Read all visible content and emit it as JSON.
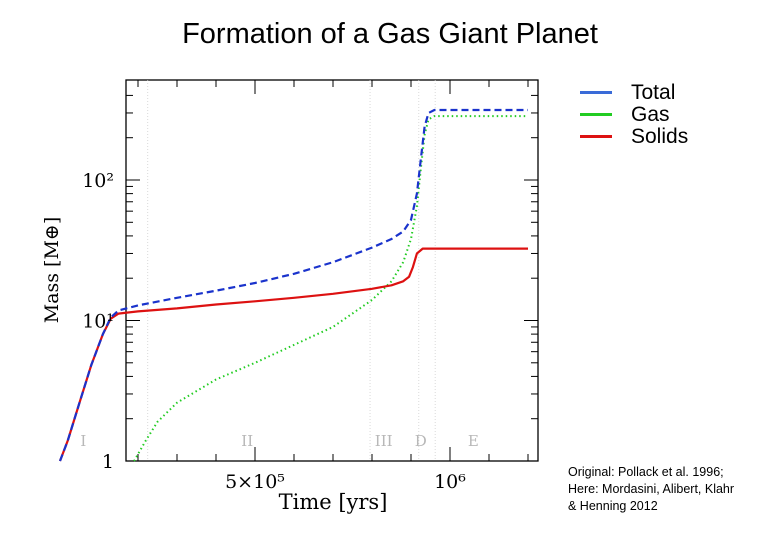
{
  "title": "Formation of a Gas Giant Planet",
  "credits": [
    "Original: Pollack et al. 1996;",
    "Here: Mordasini, Alibert, Klahr",
    "& Henning 2012"
  ],
  "colors": {
    "total": "#1a33cc",
    "gas": "#22cc22",
    "solids": "#dd1111",
    "legend_total": "#3a6bd8"
  },
  "chart_data": {
    "type": "line",
    "title": "Formation of a Gas Giant Planet",
    "xlabel": "Time [yrs]",
    "ylabel": "Mass [M⊕]",
    "x_scale": "linear",
    "y_scale": "log",
    "xlim": [
      0,
      1200000
    ],
    "ylim": [
      1,
      400
    ],
    "x_tick_labels": [
      {
        "value": 500000,
        "label": "5×10⁵"
      },
      {
        "value": 1000000,
        "label": "10⁶"
      }
    ],
    "y_tick_labels": [
      {
        "value": 1,
        "label": "1"
      },
      {
        "value": 10,
        "label": "10¹"
      },
      {
        "value": 100,
        "label": "10²"
      }
    ],
    "grid": false,
    "legend_position": "right",
    "phases": [
      {
        "label": "I",
        "x": 60000
      },
      {
        "label": "II",
        "x": 480000
      },
      {
        "label": "III",
        "x": 830000
      },
      {
        "label": "D",
        "x": 925000
      },
      {
        "label": "E",
        "x": 1060000
      }
    ],
    "series": [
      {
        "name": "Total",
        "style": "dashed",
        "points": [
          [
            0,
            1.0
          ],
          [
            20000,
            1.4
          ],
          [
            50000,
            2.6
          ],
          [
            80000,
            4.8
          ],
          [
            110000,
            8.0
          ],
          [
            130000,
            10.5
          ],
          [
            150000,
            11.8
          ],
          [
            170000,
            12.2
          ],
          [
            200000,
            12.8
          ],
          [
            300000,
            14.5
          ],
          [
            400000,
            16.3
          ],
          [
            500000,
            18.5
          ],
          [
            600000,
            21.5
          ],
          [
            700000,
            26.0
          ],
          [
            800000,
            33.0
          ],
          [
            850000,
            38.0
          ],
          [
            880000,
            43.0
          ],
          [
            900000,
            52.0
          ],
          [
            915000,
            80.0
          ],
          [
            925000,
            140.0
          ],
          [
            935000,
            240.0
          ],
          [
            945000,
            300.0
          ],
          [
            960000,
            315.0
          ],
          [
            1000000,
            315.0
          ],
          [
            1200000,
            315.0
          ]
        ]
      },
      {
        "name": "Gas",
        "style": "dotted",
        "points": [
          [
            190000,
            1.0
          ],
          [
            220000,
            1.4
          ],
          [
            250000,
            1.9
          ],
          [
            300000,
            2.6
          ],
          [
            400000,
            3.8
          ],
          [
            500000,
            5.0
          ],
          [
            600000,
            6.7
          ],
          [
            700000,
            9.0
          ],
          [
            800000,
            14.0
          ],
          [
            850000,
            19.0
          ],
          [
            880000,
            26.0
          ],
          [
            900000,
            38.0
          ],
          [
            915000,
            65.0
          ],
          [
            925000,
            120.0
          ],
          [
            935000,
            210.0
          ],
          [
            945000,
            270.0
          ],
          [
            960000,
            285.0
          ],
          [
            1000000,
            285.0
          ],
          [
            1200000,
            285.0
          ]
        ]
      },
      {
        "name": "Solids",
        "style": "solid",
        "points": [
          [
            0,
            1.0
          ],
          [
            20000,
            1.4
          ],
          [
            50000,
            2.6
          ],
          [
            80000,
            4.8
          ],
          [
            110000,
            8.0
          ],
          [
            130000,
            10.3
          ],
          [
            150000,
            11.2
          ],
          [
            200000,
            11.6
          ],
          [
            300000,
            12.2
          ],
          [
            400000,
            13.0
          ],
          [
            500000,
            13.7
          ],
          [
            600000,
            14.5
          ],
          [
            700000,
            15.5
          ],
          [
            800000,
            16.8
          ],
          [
            850000,
            17.8
          ],
          [
            880000,
            19.0
          ],
          [
            895000,
            20.5
          ],
          [
            905000,
            24.0
          ],
          [
            915000,
            30.0
          ],
          [
            930000,
            32.5
          ],
          [
            1000000,
            32.5
          ],
          [
            1200000,
            32.5
          ]
        ]
      }
    ]
  }
}
